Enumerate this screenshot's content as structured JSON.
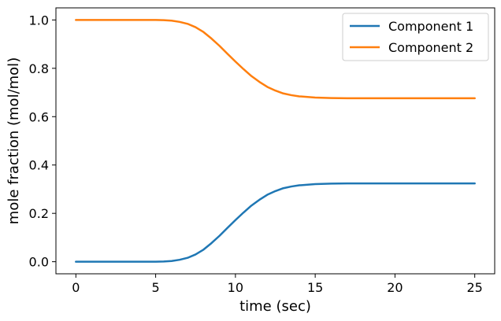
{
  "chart_data": {
    "type": "line",
    "title": "",
    "xlabel": "time (sec)",
    "ylabel": "mole fraction (mol/mol)",
    "xlim": [
      -1.25,
      26.25
    ],
    "ylim": [
      -0.05,
      1.05
    ],
    "xticks": [
      0,
      5,
      10,
      15,
      20,
      25
    ],
    "xtick_labels": [
      "0",
      "5",
      "10",
      "15",
      "20",
      "25"
    ],
    "yticks": [
      0.0,
      0.2,
      0.4,
      0.6,
      0.8,
      1.0
    ],
    "ytick_labels": [
      "0.0",
      "0.2",
      "0.4",
      "0.6",
      "0.8",
      "1.0"
    ],
    "grid": false,
    "legend_position": "top-right",
    "x": [
      0,
      1,
      2,
      3,
      4,
      5,
      5.5,
      6,
      6.5,
      7,
      7.5,
      8,
      8.5,
      9,
      9.5,
      10,
      10.5,
      11,
      11.5,
      12,
      12.5,
      13,
      13.5,
      14,
      15,
      16,
      17,
      18,
      19,
      20,
      21,
      22,
      23,
      24,
      25
    ],
    "series": [
      {
        "name": "Component 1",
        "color": "#1f77b4",
        "values": [
          0.0,
          0.0,
          0.0,
          0.0,
          0.0,
          0.0,
          0.001,
          0.003,
          0.008,
          0.016,
          0.03,
          0.05,
          0.077,
          0.107,
          0.14,
          0.172,
          0.203,
          0.232,
          0.256,
          0.277,
          0.292,
          0.304,
          0.311,
          0.316,
          0.321,
          0.323,
          0.324,
          0.324,
          0.324,
          0.324,
          0.324,
          0.324,
          0.324,
          0.324,
          0.324
        ]
      },
      {
        "name": "Component 2",
        "color": "#ff7f0e",
        "values": [
          1.0,
          1.0,
          1.0,
          1.0,
          1.0,
          1.0,
          0.999,
          0.997,
          0.992,
          0.984,
          0.97,
          0.95,
          0.923,
          0.893,
          0.86,
          0.828,
          0.797,
          0.768,
          0.744,
          0.723,
          0.708,
          0.696,
          0.689,
          0.684,
          0.679,
          0.677,
          0.676,
          0.676,
          0.676,
          0.676,
          0.676,
          0.676,
          0.676,
          0.676,
          0.676
        ]
      }
    ]
  }
}
